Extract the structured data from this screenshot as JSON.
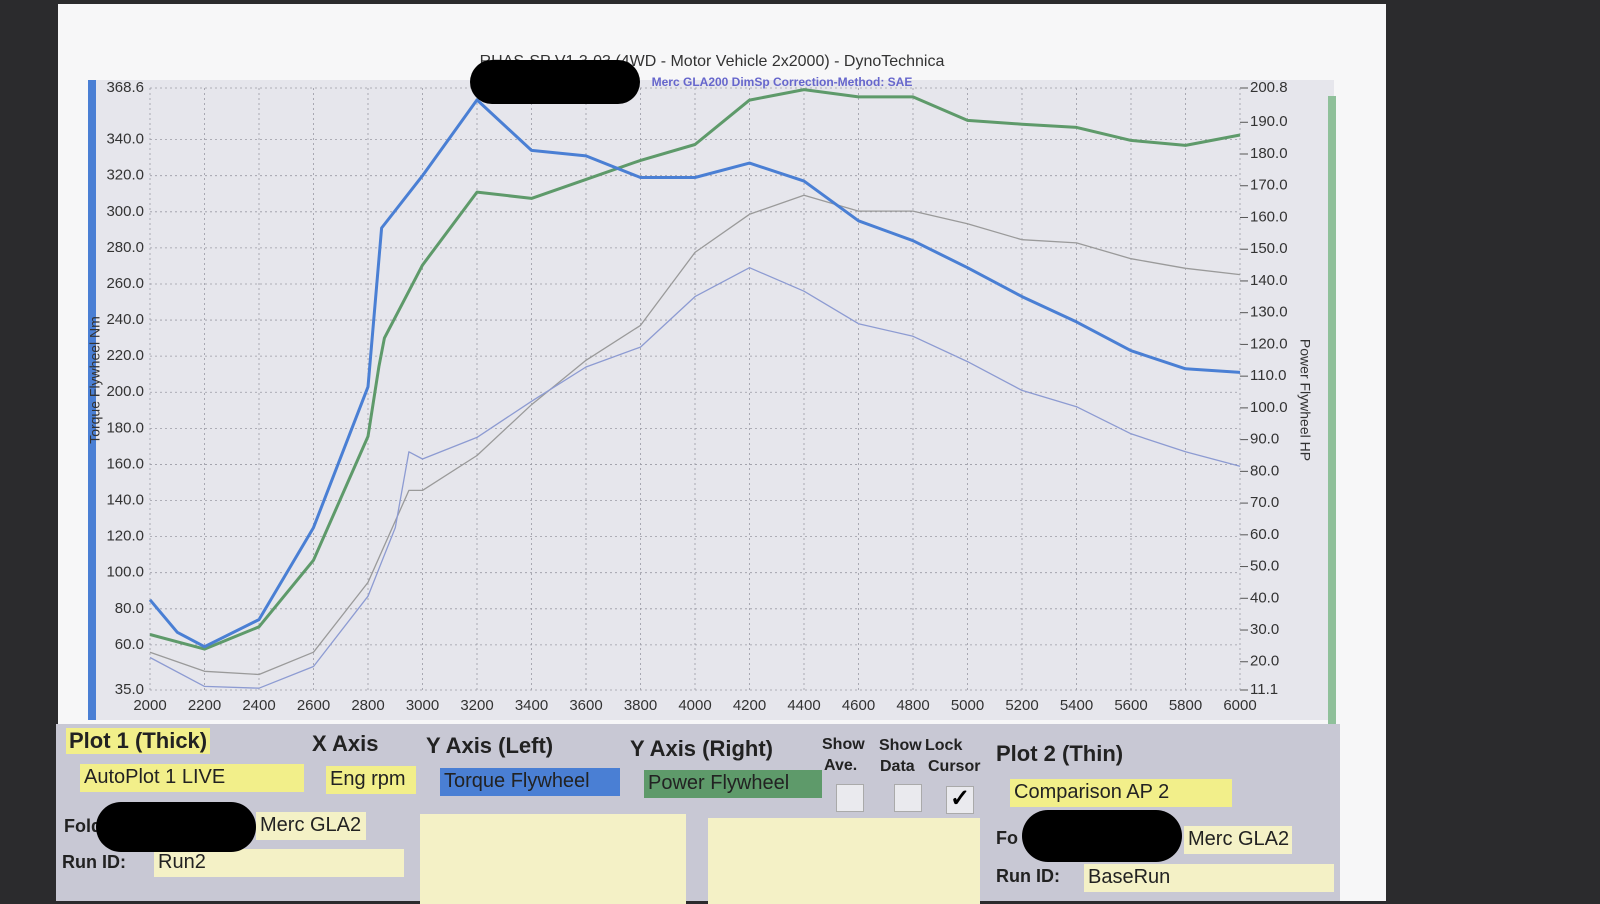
{
  "chart_data": {
    "type": "line",
    "title": "RHAS-SP V1.3-03  (4WD - Motor Vehicle 2x2000) - DynoTechnica",
    "subtitle": "Merc GLA200 DimSp   Correction-Method: SAE",
    "y_label": "Torque Flywheel Nm",
    "y2_label": "Power Flywheel HP",
    "xlim": [
      2000,
      6000
    ],
    "xticks": [
      2000,
      2200,
      2400,
      2600,
      2800,
      3000,
      3200,
      3400,
      3600,
      3800,
      4000,
      4200,
      4400,
      4600,
      4800,
      5000,
      5200,
      5400,
      5600,
      5800,
      6000
    ],
    "ylim": [
      35,
      368.6
    ],
    "yticks": [
      {
        "value": 35,
        "label": "35.0"
      },
      {
        "value": 60,
        "label": "60.0"
      },
      {
        "value": 80,
        "label": "80.0"
      },
      {
        "value": 100,
        "label": "100.0"
      },
      {
        "value": 120,
        "label": "120.0"
      },
      {
        "value": 140,
        "label": "140.0"
      },
      {
        "value": 160,
        "label": "160.0"
      },
      {
        "value": 180,
        "label": "180.0"
      },
      {
        "value": 200,
        "label": "200.0"
      },
      {
        "value": 220,
        "label": "220.0"
      },
      {
        "value": 240,
        "label": "240.0"
      },
      {
        "value": 260,
        "label": "260.0"
      },
      {
        "value": 280,
        "label": "280.0"
      },
      {
        "value": 300,
        "label": "300.0"
      },
      {
        "value": 320,
        "label": "320.0"
      },
      {
        "value": 340,
        "label": "340.0"
      },
      368.6
    ],
    "y2lim": [
      11.1,
      200.8
    ],
    "y2ticks": [
      11.1,
      {
        "value": 20,
        "label": "20.0"
      },
      {
        "value": 30,
        "label": "30.0"
      },
      {
        "value": 40,
        "label": "40.0"
      },
      {
        "value": 50,
        "label": "50.0"
      },
      {
        "value": 60,
        "label": "60.0"
      },
      {
        "value": 70,
        "label": "70.0"
      },
      {
        "value": 80,
        "label": "80.0"
      },
      {
        "value": 90,
        "label": "90.0"
      },
      {
        "value": 100,
        "label": "100.0"
      },
      {
        "value": 110,
        "label": "110.0"
      },
      {
        "value": 120,
        "label": "120.0"
      },
      {
        "value": 130,
        "label": "130.0"
      },
      {
        "value": 140,
        "label": "140.0"
      },
      {
        "value": 150,
        "label": "150.0"
      },
      {
        "value": 160,
        "label": "160.0"
      },
      {
        "value": 170,
        "label": "170.0"
      },
      {
        "value": 180,
        "label": "180.0"
      },
      {
        "value": 190,
        "label": "190.0"
      },
      200.8
    ],
    "grid": true,
    "series": [
      {
        "color": "#4a7fd4",
        "x": [
          2000,
          2100,
          2200,
          2400,
          2600,
          2800,
          2850,
          3000,
          3200,
          3400,
          3600,
          3800,
          4000,
          4200,
          4400,
          4600,
          4800,
          5000,
          5200,
          5400,
          5600,
          5800,
          6000
        ],
        "values": [
          85,
          67,
          59,
          74,
          125,
          203,
          291,
          320,
          362,
          334,
          331,
          319,
          319,
          327,
          317,
          295,
          284,
          269,
          253,
          239,
          223,
          213,
          211
        ]
      },
      {
        "color": "#5e9a6a",
        "axis": "y2",
        "x": [
          2000,
          2200,
          2400,
          2600,
          2800,
          2840,
          2860,
          3000,
          3200,
          3400,
          3600,
          3800,
          4000,
          4200,
          4400,
          4600,
          4800,
          5000,
          5200,
          5400,
          5600,
          5800,
          6000
        ],
        "values": [
          28.6,
          24,
          31,
          52,
          91,
          113,
          122,
          145,
          168,
          166,
          172,
          178,
          183,
          197,
          200.3,
          198,
          198,
          190.6,
          189.4,
          188.4,
          184.3,
          182.7,
          186
        ]
      },
      {
        "color": "#8d9bd2",
        "x": [
          2000,
          2200,
          2400,
          2600,
          2800,
          2900,
          2950,
          3000,
          3200,
          3400,
          3600,
          3800,
          4000,
          4200,
          4400,
          4600,
          4800,
          5000,
          5200,
          5400,
          5600,
          5800,
          6000
        ],
        "values": [
          53,
          37,
          36,
          48,
          87,
          125,
          167,
          163,
          175,
          195,
          214,
          225,
          253,
          269,
          256,
          238,
          231,
          217,
          201,
          192,
          177,
          167,
          159
        ]
      },
      {
        "color": "#9a9a9a",
        "axis": "y2",
        "x": [
          2000,
          2200,
          2400,
          2600,
          2800,
          2950,
          3000,
          3200,
          3400,
          3600,
          3800,
          4000,
          4200,
          4400,
          4600,
          4800,
          5000,
          5200,
          5400,
          5600,
          5800,
          6000
        ],
        "values": [
          23,
          17,
          16,
          23,
          45,
          74,
          74,
          85,
          101,
          115,
          126,
          149,
          161,
          167,
          162,
          162,
          158,
          153,
          152,
          147,
          144,
          142
        ]
      }
    ]
  },
  "panel": {
    "plot1": "Plot 1 (Thick)",
    "x_axis": "X Axis",
    "y_left": "Y Axis (Left)",
    "y_right": "Y Axis (Right)",
    "show_ave": [
      "Show",
      "Ave."
    ],
    "show_data": [
      "Show",
      "Data"
    ],
    "lock_cursor": [
      "Lock",
      "Cursor"
    ],
    "plot2": "Plot 2 (Thin)",
    "plot1_select": "AutoPlot 1 LIVE",
    "x_select": "Eng rpm",
    "y_left_select": "Torque Flywheel",
    "y_right_select": "Power Flywheel",
    "plot2_select": "Comparison AP 2",
    "folder1_label": "Fold",
    "folder1": "Merc GLA2",
    "run1_label": "Run ID:",
    "run1": "Run2",
    "folder2_label": "Fo",
    "folder2": "Merc GLA2",
    "run2_label": "Run ID:",
    "run2": "BaseRun"
  }
}
